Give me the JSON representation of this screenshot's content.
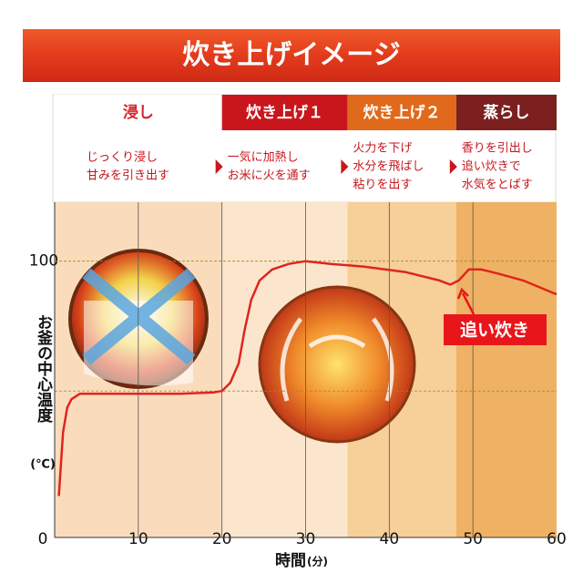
{
  "chart_data": {
    "type": "line",
    "title": "炊き上げイメージ",
    "ylabel": "お釜の中心温度",
    "yunit": "(℃)",
    "xlabel": "時間",
    "xunit": "(分)",
    "xlim": [
      0,
      60
    ],
    "ylim": [
      0,
      120
    ],
    "xticks": [
      0,
      10,
      20,
      30,
      40,
      50,
      60
    ],
    "yticks": [
      0,
      100
    ],
    "dashed_lines": [
      100,
      53
    ],
    "grid": true,
    "phases": [
      {
        "name": "浸し",
        "start": 0,
        "end": 20,
        "color": "#ffffff",
        "text_color": "#d2232a",
        "band": "#fadcbc",
        "desc": [
          "じっくり浸し",
          "甘みを引き出す"
        ]
      },
      {
        "name": "炊き上げ１",
        "start": 20,
        "end": 35,
        "color": "#c9161d",
        "text_color": "#ffffff",
        "band": "#fbe6cd",
        "desc": [
          "一気に加熱し",
          "お米に火を通す"
        ]
      },
      {
        "name": "炊き上げ２",
        "start": 35,
        "end": 48,
        "color": "#e0691b",
        "text_color": "#ffffff",
        "band": "#f7cf98",
        "desc": [
          "火力を下げ",
          "水分を飛ばし",
          "粘りを出す"
        ]
      },
      {
        "name": "蒸らし",
        "start": 48,
        "end": 60,
        "color": "#7b1f1f",
        "text_color": "#ffffff",
        "band": "#efb264",
        "desc": [
          "香りを引出し",
          "追い炊きで",
          "水気をとばす"
        ]
      }
    ],
    "series": [
      {
        "name": "お釜の中心温度",
        "color": "#e0241e",
        "x": [
          0.5,
          1,
          1.5,
          2,
          3,
          5,
          10,
          15,
          19,
          20,
          21,
          22,
          22.7,
          23.5,
          24.5,
          26,
          28,
          30,
          33,
          37,
          42,
          46,
          47.3,
          48.3,
          49.5,
          51,
          53,
          56,
          60
        ],
        "values": [
          15,
          38,
          47,
          50,
          52,
          52,
          52,
          52,
          52.5,
          53,
          56,
          63,
          75,
          86,
          93,
          97,
          99,
          100,
          99,
          98,
          96,
          93,
          91.5,
          93,
          97,
          97,
          95.5,
          93,
          88
        ]
      }
    ],
    "annotation": "追い炊き"
  }
}
